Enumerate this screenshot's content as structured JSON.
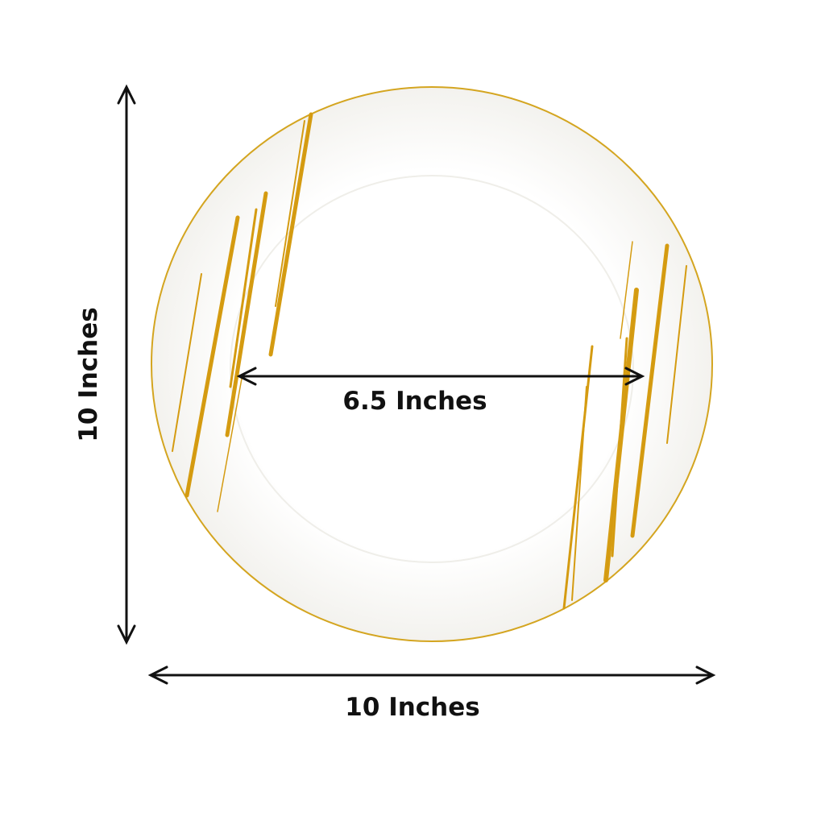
{
  "dimensions": {
    "height_label": "10 Inches",
    "width_label": "10 Inches",
    "inner_diameter_label": "6.5 Inches"
  },
  "colors": {
    "rim": "#d4a520",
    "gold_stroke": "#e0b21a",
    "plate": "#fdfdfb",
    "arrow": "#111111"
  }
}
